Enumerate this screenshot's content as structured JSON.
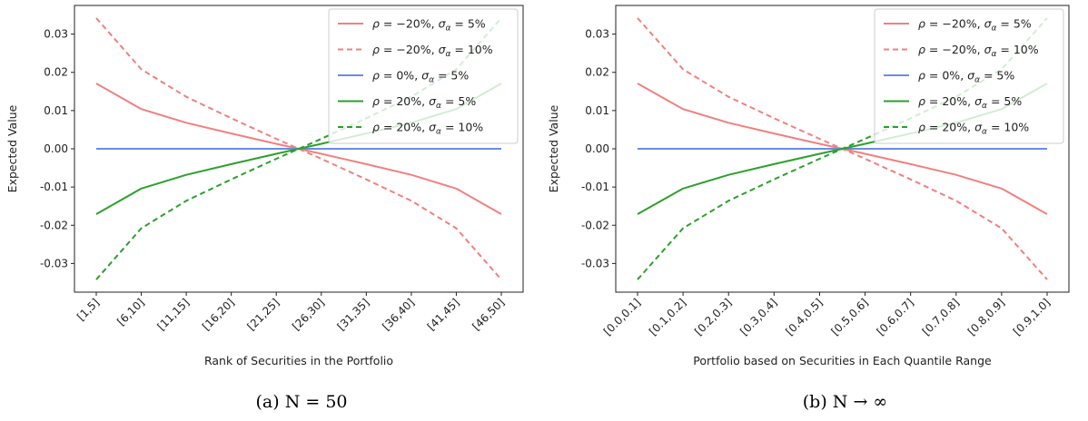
{
  "chart_data": [
    {
      "type": "line",
      "caption": "(a) N = 50",
      "xlabel": "Rank of Securities in the Portfolio",
      "ylabel": "Expected Value",
      "categories": [
        "[1,5]",
        "[6,10]",
        "[11,15]",
        "[16,20]",
        "[21,25]",
        "[26,30]",
        "[31,35]",
        "[36,40]",
        "[41,45]",
        "[46,50]"
      ],
      "ylim": [
        -0.0375,
        0.0375
      ],
      "yticks": [
        -0.03,
        -0.02,
        -0.01,
        0.0,
        0.01,
        0.02,
        0.03
      ],
      "ytick_labels": [
        "-0.03",
        "-0.02",
        "-0.01",
        "0.00",
        "0.01",
        "0.02",
        "0.03"
      ],
      "legend_position": "top-right",
      "series": [
        {
          "name": "ρ = −20%, σα = 5%",
          "color": "#f08080",
          "dash": "solid",
          "values": [
            0.0171,
            0.0104,
            0.0068,
            0.004,
            0.0013,
            -0.0013,
            -0.004,
            -0.0068,
            -0.0104,
            -0.0171
          ]
        },
        {
          "name": "ρ = −20%, σα = 10%",
          "color": "#f08080",
          "dash": "dashed",
          "values": [
            0.0342,
            0.0208,
            0.0136,
            0.008,
            0.0026,
            -0.0026,
            -0.008,
            -0.0136,
            -0.0208,
            -0.0342
          ]
        },
        {
          "name": "ρ = 0%, σα = 5%",
          "color": "#6b8be8",
          "dash": "solid",
          "values": [
            0,
            0,
            0,
            0,
            0,
            0,
            0,
            0,
            0,
            0
          ]
        },
        {
          "name": "ρ = 20%, σα = 5%",
          "color": "#2ca02c",
          "dash": "solid",
          "values": [
            -0.0171,
            -0.0104,
            -0.0068,
            -0.004,
            -0.0013,
            0.0013,
            0.004,
            0.0068,
            0.0104,
            0.0171
          ]
        },
        {
          "name": "ρ = 20%, σα = 10%",
          "color": "#2ca02c",
          "dash": "dashed",
          "values": [
            -0.0342,
            -0.0208,
            -0.0136,
            -0.008,
            -0.0026,
            0.0026,
            0.008,
            0.0136,
            0.0208,
            0.0342
          ]
        }
      ]
    },
    {
      "type": "line",
      "caption": "(b) N → ∞",
      "xlabel": "Portfolio based on Securities in Each Quantile Range",
      "ylabel": "Expected Value",
      "categories": [
        "[0.0,0.1]",
        "[0.1,0.2]",
        "[0.2,0.3]",
        "[0.3,0.4]",
        "[0.4,0.5]",
        "[0.5,0.6]",
        "[0.6,0.7]",
        "[0.7,0.8]",
        "[0.8,0.9]",
        "[0.9,1.0]"
      ],
      "ylim": [
        -0.0375,
        0.0375
      ],
      "yticks": [
        -0.03,
        -0.02,
        -0.01,
        0.0,
        0.01,
        0.02,
        0.03
      ],
      "ytick_labels": [
        "-0.03",
        "-0.02",
        "-0.01",
        "0.00",
        "0.01",
        "0.02",
        "0.03"
      ],
      "legend_position": "top-right",
      "series": [
        {
          "name": "ρ = −20%, σα = 5%",
          "color": "#f08080",
          "dash": "solid",
          "values": [
            0.0171,
            0.0104,
            0.0068,
            0.004,
            0.0013,
            -0.0013,
            -0.004,
            -0.0068,
            -0.0104,
            -0.0171
          ]
        },
        {
          "name": "ρ = −20%, σα = 10%",
          "color": "#f08080",
          "dash": "dashed",
          "values": [
            0.0342,
            0.0208,
            0.0136,
            0.008,
            0.0026,
            -0.0026,
            -0.008,
            -0.0136,
            -0.0208,
            -0.0342
          ]
        },
        {
          "name": "ρ = 0%, σα = 5%",
          "color": "#6b8be8",
          "dash": "solid",
          "values": [
            0,
            0,
            0,
            0,
            0,
            0,
            0,
            0,
            0,
            0
          ]
        },
        {
          "name": "ρ = 20%, σα = 5%",
          "color": "#2ca02c",
          "dash": "solid",
          "values": [
            -0.0171,
            -0.0104,
            -0.0068,
            -0.004,
            -0.0013,
            0.0013,
            0.004,
            0.0068,
            0.0104,
            0.0171
          ]
        },
        {
          "name": "ρ = 20%, σα = 10%",
          "color": "#2ca02c",
          "dash": "dashed",
          "values": [
            -0.0342,
            -0.0208,
            -0.0136,
            -0.008,
            -0.0026,
            0.0026,
            0.008,
            0.0136,
            0.0208,
            0.0342
          ]
        }
      ]
    }
  ]
}
